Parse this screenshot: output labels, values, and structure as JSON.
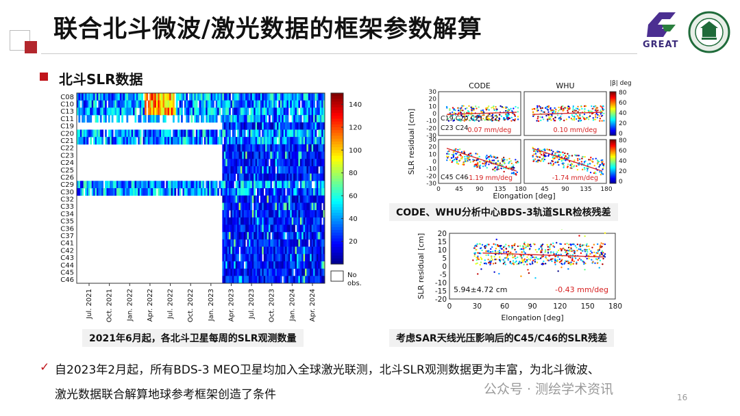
{
  "slide": {
    "title": "联合北斗微波/激光数据的框架参数解算",
    "section": "北斗SLR数据",
    "page_number": "16"
  },
  "logos": {
    "great_text": "GREAT"
  },
  "heatmap": {
    "satellites": [
      "C08",
      "C10",
      "C13",
      "C11",
      "C19",
      "C20",
      "C21",
      "C22",
      "C23",
      "C24",
      "C25",
      "C26",
      "C29",
      "C30",
      "C32",
      "C33",
      "C34",
      "C35",
      "C36",
      "C37",
      "C41",
      "C42",
      "C43",
      "C44",
      "C45",
      "C46"
    ],
    "dates": [
      "Jul. 2021",
      "Oct. 2021",
      "Jan. 2022",
      "Apr. 2022",
      "Jul. 2022",
      "Oct. 2022",
      "Jan. 2023",
      "Apr. 2023",
      "Jul. 2023",
      "Oct. 2023",
      "Jan. 2024",
      "Apr. 2024"
    ],
    "colorbar_ticks": [
      "140",
      "120",
      "100",
      "80",
      "60",
      "40",
      "20"
    ],
    "no_obs_label": "No\nobs.",
    "caption": "2021年6月起，各北斗卫星每周的SLR观测数量"
  },
  "residual_panel": {
    "titles": [
      "CODE",
      "WHU"
    ],
    "ylabel": "SLR residual [cm]",
    "xlabel": "Elongation [deg]",
    "beta_label": "|β| deg",
    "top_yticks": [
      "30",
      "20",
      "10",
      "0",
      "-10",
      "-20",
      "-30"
    ],
    "bottom_yticks": [
      "30",
      "20",
      "10",
      "0",
      "-10",
      "-20",
      "-30"
    ],
    "xticks": [
      "0",
      "45",
      "90",
      "135",
      "180"
    ],
    "xticks_right": [
      "45",
      "90",
      "135",
      "180"
    ],
    "cbar_ticks": [
      "80",
      "60",
      "40",
      "20",
      "0"
    ],
    "top_group_label_1": "C19 C20 C21 C22",
    "top_group_label_2": "C23 C24",
    "bottom_group_label": "C45 C46",
    "slopes": {
      "code_top": "0.07 mm/deg",
      "whu_top": "0.10 mm/deg",
      "code_bottom": "-1.19 mm/deg",
      "whu_bottom": "-1.74 mm/deg"
    },
    "caption": "CODE、WHU分析中心BDS-3轨道SLR检核残差"
  },
  "corrected_panel": {
    "ylabel": "SLR residual [cm]",
    "xlabel": "Elongation [deg]",
    "yticks": [
      "20",
      "15",
      "10",
      "5",
      "0",
      "-5",
      "-10",
      "-15",
      "-20"
    ],
    "xticks": [
      "0",
      "30",
      "60",
      "90",
      "120",
      "150",
      "180"
    ],
    "stats": "5.94±4.72 cm",
    "slope": "-0.43 mm/deg",
    "caption": "考虑SAR天线光压影响后的C45/C46的SLR残差"
  },
  "body_text": {
    "line1": "自2023年2月起，所有BDS-3 MEO卫星均加入全球激光联测，北斗SLR观测数据更为丰富，为北斗微波、",
    "line2": "激光数据联合解算地球参考框架创造了条件"
  },
  "watermark": "公众号 · 测绘学术资讯"
}
